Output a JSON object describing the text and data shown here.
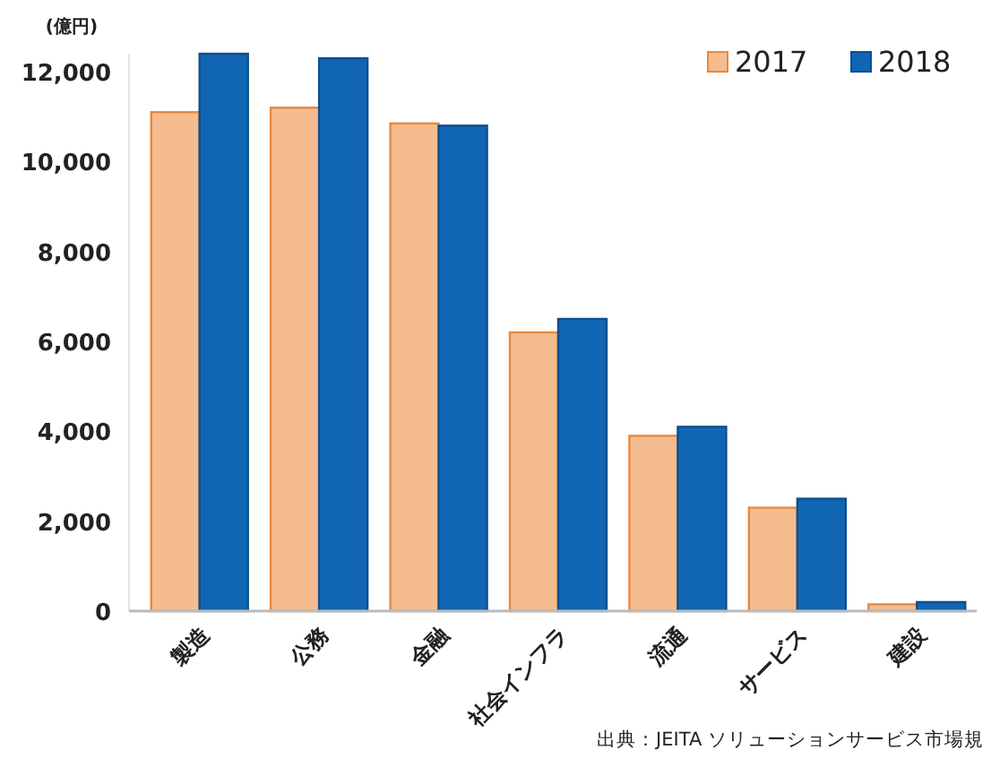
{
  "chart_data": {
    "type": "bar",
    "ylabel": "(億円)",
    "categories": [
      "製造",
      "公務",
      "金融",
      "社会インフラ",
      "流通",
      "サービス",
      "建設"
    ],
    "series": [
      {
        "name": "2017",
        "color": "#f4bc8f",
        "values": [
          11100,
          11200,
          10850,
          6200,
          3900,
          2300,
          150
        ]
      },
      {
        "name": "2018",
        "color": "#1166b3",
        "values": [
          12400,
          12300,
          10800,
          6500,
          4100,
          2500,
          200
        ]
      }
    ],
    "ylim": [
      0,
      12400
    ],
    "yticks": [
      0,
      {
        "value": 2000,
        "label": "2,000"
      },
      {
        "value": 4000,
        "label": "4,000"
      },
      {
        "value": 6000,
        "label": "6,000"
      },
      {
        "value": 8000,
        "label": "8,000"
      },
      {
        "value": 10000,
        "label": "10,000"
      },
      {
        "value": 12000,
        "label": "12,000"
      }
    ],
    "grid": false,
    "legend": "top right",
    "annotations": [
      "出典：JEITA ソリューションサービス市場規"
    ]
  }
}
